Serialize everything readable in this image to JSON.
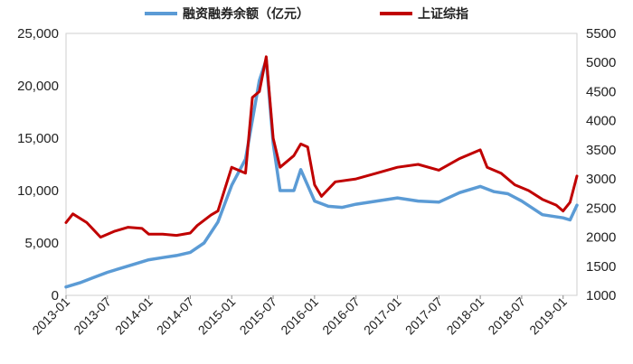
{
  "chart_data": {
    "type": "line",
    "title": "",
    "xlabel": "",
    "ylabel": "",
    "legend_position": "top",
    "grid": false,
    "x_ticks": [
      "2013-01",
      "2013-07",
      "2014-01",
      "2014-07",
      "2015-01",
      "2015-07",
      "2016-01",
      "2016-07",
      "2017-01",
      "2017-07",
      "2018-01",
      "2018-07",
      "2019-01"
    ],
    "y_left": {
      "lim": [
        0,
        25000
      ],
      "ticks": [
        "0",
        "5,000",
        "10,000",
        "15,000",
        "20,000",
        "25,000"
      ]
    },
    "y_right": {
      "lim": [
        1000,
        5500
      ],
      "ticks": [
        "1000",
        "1500",
        "2000",
        "2500",
        "3000",
        "3500",
        "4000",
        "4500",
        "5000",
        "5500"
      ]
    },
    "series": [
      {
        "name": "融资融券余额（亿元）",
        "axis": "left",
        "color": "#5b9bd5",
        "points": [
          [
            "2013-01",
            800
          ],
          [
            "2013-03",
            1200
          ],
          [
            "2013-05",
            1700
          ],
          [
            "2013-07",
            2200
          ],
          [
            "2013-09",
            2600
          ],
          [
            "2013-11",
            3000
          ],
          [
            "2014-01",
            3400
          ],
          [
            "2014-03",
            3600
          ],
          [
            "2014-05",
            3800
          ],
          [
            "2014-07",
            4100
          ],
          [
            "2014-09",
            5000
          ],
          [
            "2014-11",
            7000
          ],
          [
            "2015-01",
            10500
          ],
          [
            "2015-03",
            13000
          ],
          [
            "2015-05",
            20500
          ],
          [
            "2015-06",
            22500
          ],
          [
            "2015-07",
            14500
          ],
          [
            "2015-08",
            10000
          ],
          [
            "2015-10",
            10000
          ],
          [
            "2015-11",
            12000
          ],
          [
            "2016-01",
            9000
          ],
          [
            "2016-03",
            8500
          ],
          [
            "2016-05",
            8400
          ],
          [
            "2016-07",
            8700
          ],
          [
            "2016-10",
            9000
          ],
          [
            "2017-01",
            9300
          ],
          [
            "2017-04",
            9000
          ],
          [
            "2017-07",
            8900
          ],
          [
            "2017-10",
            9800
          ],
          [
            "2018-01",
            10400
          ],
          [
            "2018-03",
            9900
          ],
          [
            "2018-05",
            9700
          ],
          [
            "2018-07",
            9000
          ],
          [
            "2018-10",
            7700
          ],
          [
            "2019-01",
            7400
          ],
          [
            "2019-02",
            7200
          ],
          [
            "2019-03",
            8600
          ]
        ]
      },
      {
        "name": "上证综指",
        "axis": "right",
        "color": "#c00000",
        "points": [
          [
            "2013-01",
            2250
          ],
          [
            "2013-02",
            2400
          ],
          [
            "2013-04",
            2250
          ],
          [
            "2013-06",
            2000
          ],
          [
            "2013-08",
            2100
          ],
          [
            "2013-10",
            2170
          ],
          [
            "2013-12",
            2150
          ],
          [
            "2014-01",
            2050
          ],
          [
            "2014-03",
            2050
          ],
          [
            "2014-05",
            2030
          ],
          [
            "2014-07",
            2070
          ],
          [
            "2014-08",
            2200
          ],
          [
            "2014-10",
            2380
          ],
          [
            "2014-11",
            2450
          ],
          [
            "2015-01",
            3200
          ],
          [
            "2015-03",
            3100
          ],
          [
            "2015-04",
            4400
          ],
          [
            "2015-05",
            4500
          ],
          [
            "2015-06",
            5100
          ],
          [
            "2015-07",
            3700
          ],
          [
            "2015-08",
            3200
          ],
          [
            "2015-10",
            3400
          ],
          [
            "2015-11",
            3600
          ],
          [
            "2015-12",
            3550
          ],
          [
            "2016-01",
            2900
          ],
          [
            "2016-02",
            2700
          ],
          [
            "2016-04",
            2950
          ],
          [
            "2016-07",
            3000
          ],
          [
            "2016-10",
            3100
          ],
          [
            "2017-01",
            3200
          ],
          [
            "2017-04",
            3250
          ],
          [
            "2017-07",
            3150
          ],
          [
            "2017-10",
            3350
          ],
          [
            "2018-01",
            3500
          ],
          [
            "2018-02",
            3200
          ],
          [
            "2018-04",
            3100
          ],
          [
            "2018-06",
            2900
          ],
          [
            "2018-08",
            2800
          ],
          [
            "2018-10",
            2650
          ],
          [
            "2018-12",
            2550
          ],
          [
            "2019-01",
            2450
          ],
          [
            "2019-02",
            2600
          ],
          [
            "2019-03",
            3050
          ]
        ]
      }
    ]
  }
}
